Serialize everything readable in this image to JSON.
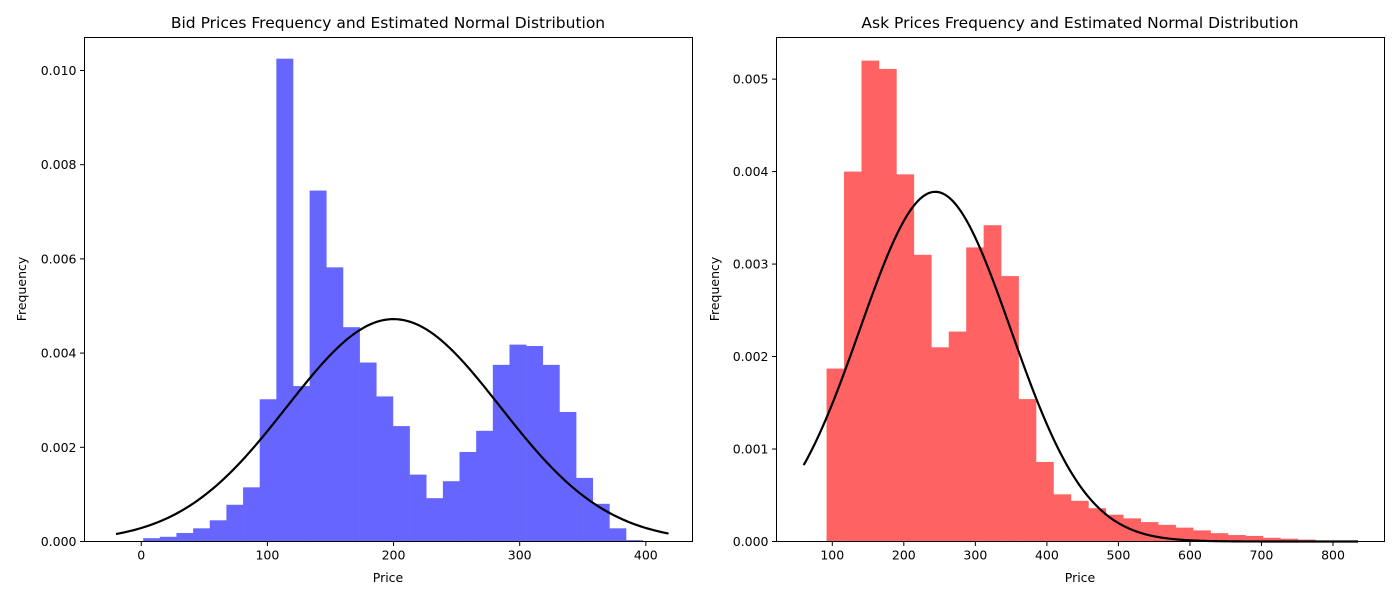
{
  "chart_data": [
    {
      "type": "bar",
      "title": "Bid Prices Frequency and Estimated Normal Distribution",
      "xlabel": "Price",
      "ylabel": "Frequency",
      "xlim": [
        -45,
        437
      ],
      "ylim": [
        0,
        0.0107
      ],
      "xticks": [
        0,
        100,
        200,
        300,
        400
      ],
      "yticks": [
        0.0,
        0.002,
        0.004,
        0.006,
        0.008,
        0.01
      ],
      "ytick_labels": [
        "0.000",
        "0.002",
        "0.004",
        "0.006",
        "0.008",
        "0.010"
      ],
      "grid": false,
      "histogram": {
        "color": "#6666ff",
        "bin_start": 1.5,
        "bin_width": 13.2,
        "values": [
          7e-05,
          0.0001,
          0.00018,
          0.00028,
          0.00045,
          0.00078,
          0.00115,
          0.00302,
          0.01025,
          0.0033,
          0.00745,
          0.00582,
          0.00455,
          0.0038,
          0.00308,
          0.00245,
          0.00142,
          0.00092,
          0.00128,
          0.0019,
          0.00235,
          0.00375,
          0.00418,
          0.00415,
          0.00375,
          0.00275,
          0.00135,
          0.0008,
          0.00028,
          3e-05
        ]
      },
      "curve": {
        "color": "#000000",
        "type": "normal",
        "mean": 200,
        "std": 84.5,
        "x_range": [
          -20,
          418
        ]
      }
    },
    {
      "type": "bar",
      "title": "Ask Prices Frequency and Estimated Normal Distribution",
      "xlabel": "Price",
      "ylabel": "Frequency",
      "xlim": [
        22,
        872
      ],
      "ylim": [
        0,
        0.00545
      ],
      "xticks": [
        100,
        200,
        300,
        400,
        500,
        600,
        700,
        800
      ],
      "yticks": [
        0.0,
        0.001,
        0.002,
        0.003,
        0.004,
        0.005
      ],
      "ytick_labels": [
        "0.000",
        "0.001",
        "0.002",
        "0.003",
        "0.004",
        "0.005"
      ],
      "grid": false,
      "histogram": {
        "color": "#ff6262",
        "bin_start": 92,
        "bin_width": 24.4,
        "values": [
          0.00187,
          0.004,
          0.0052,
          0.00511,
          0.00397,
          0.0031,
          0.0021,
          0.00227,
          0.00318,
          0.00342,
          0.00287,
          0.00154,
          0.00086,
          0.00051,
          0.00044,
          0.00036,
          0.00029,
          0.00025,
          0.00021,
          0.00018,
          0.00015,
          0.00012,
          9e-05,
          7e-05,
          6e-05,
          4e-05,
          3e-05,
          2e-05,
          1e-05,
          1e-05,
          5e-06
        ]
      },
      "curve": {
        "color": "#000000",
        "type": "normal",
        "mean": 244,
        "std": 105.5,
        "x_range": [
          60,
          835
        ]
      }
    }
  ]
}
